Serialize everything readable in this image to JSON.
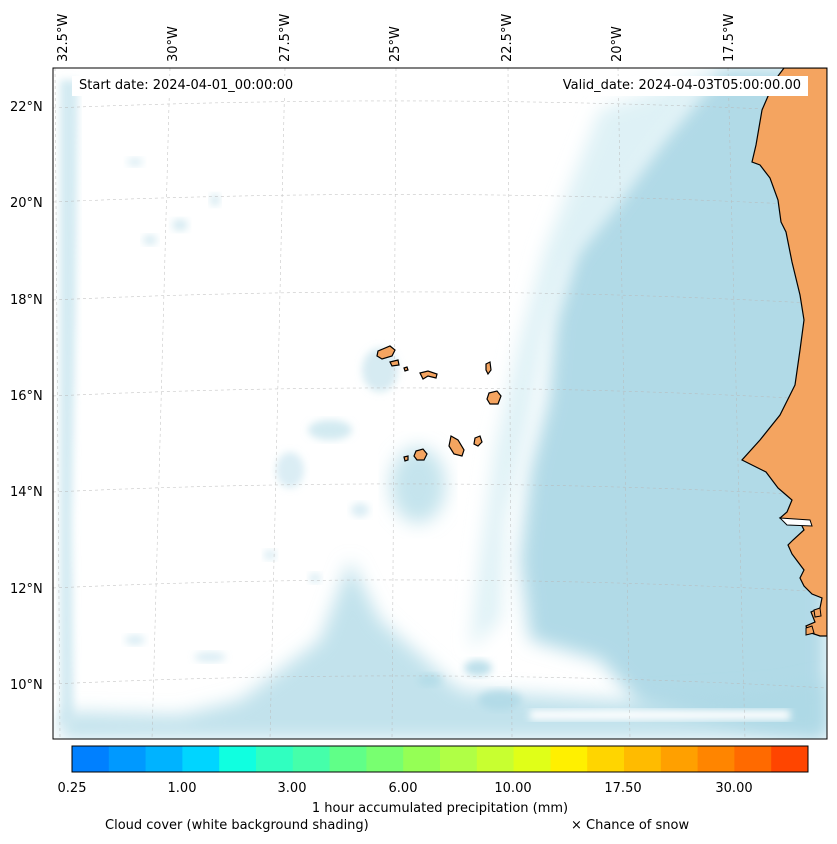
{
  "map": {
    "start_date": "Start date: 2024-04-01_00:00:00",
    "valid_date": "Valid_date: 2024-04-03T05:00:00.00",
    "longitude_labels": [
      "32.5°W",
      "30°W",
      "27.5°W",
      "25°W",
      "22.5°W",
      "20°W",
      "17.5°W"
    ],
    "latitude_labels": [
      "22°N",
      "20°N",
      "18°N",
      "16°N",
      "14°N",
      "12°N",
      "10°N"
    ],
    "colors": {
      "land": "#f4a460",
      "ocean": "#ffffff",
      "cloud": "#add8e6",
      "coastline": "#000000"
    }
  },
  "colorbar": {
    "title": "1 hour accumulated precipitation (mm)",
    "tick_labels": [
      "0.25",
      "1.00",
      "3.00",
      "6.00",
      "10.00",
      "17.50",
      "30.00"
    ],
    "colors": [
      "#0080ff",
      "#0099ff",
      "#00b3ff",
      "#00d5ff",
      "#10ffe0",
      "#30ffc0",
      "#45ffaa",
      "#60ff88",
      "#78ff70",
      "#95ff55",
      "#b0ff45",
      "#c8ff30",
      "#e0ff18",
      "#fff000",
      "#ffd500",
      "#ffbb00",
      "#ffa000",
      "#ff8500",
      "#ff6a00",
      "#ff4500"
    ]
  },
  "legend": {
    "cloud_cover": "Cloud cover (white background shading)",
    "snow": "× Chance of snow"
  }
}
